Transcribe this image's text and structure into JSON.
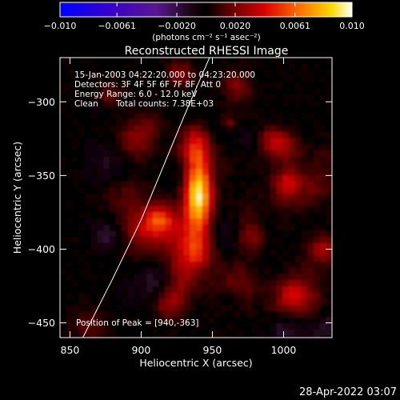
{
  "chart_data": {
    "type": "heatmap",
    "title": "Reconstructed RHESSI Image",
    "xlabel": "Heliocentric X (arcsec)",
    "ylabel": "Heliocentric Y (arcsec)",
    "xlim": [
      843,
      1034
    ],
    "ylim": [
      -460,
      -270
    ],
    "x_ticks": [
      850,
      900,
      950,
      1000
    ],
    "y_ticks": [
      -300,
      -350,
      -400,
      -450
    ],
    "colorbar": {
      "range": [
        -0.01,
        0.01
      ],
      "tick_values": [
        -0.01,
        -0.0061,
        -0.002,
        0.002,
        0.0061,
        0.01
      ],
      "tick_labels": [
        "−0.010",
        "−0.0061",
        "−0.0020",
        "0.0020",
        "0.0061",
        "0.010"
      ],
      "units": "(photons cm⁻² s⁻¹ asec⁻²)"
    },
    "annotations": {
      "time_range": "15-Jan-2003 04:22:20.000 to 04:23:20.000",
      "detectors": "Detectors: 3F 4F 5F 6F 7F 8F, Att 0",
      "energy_range": "Energy Range: 6.0 - 12.0 keV",
      "method": "Clean",
      "total_counts": "Total counts: 7.38E+03",
      "peak": "Position of Peak = [940,-363]"
    },
    "peak": {
      "x": 940,
      "y": -363
    },
    "limb_curve": [
      [
        859,
        -460
      ],
      [
        880,
        -420
      ],
      [
        900,
        -380
      ],
      [
        915,
        -345
      ],
      [
        930,
        -310
      ],
      [
        948,
        -270
      ]
    ],
    "grid": false,
    "colormap": "blue-purple-black-red-yellow-white"
  },
  "footer": {
    "date": "28-Apr-2022 03:07"
  }
}
